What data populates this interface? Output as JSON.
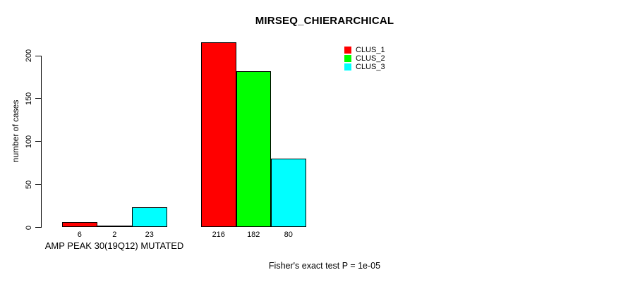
{
  "title": "MIRSEQ_CHIERARCHICAL",
  "subtitle": "Fisher's exact test P = 1e-05",
  "ylabel": "number of cases",
  "legend": {
    "position": "top-right",
    "entries": [
      {
        "label": "CLUS_1",
        "color": "#ff0000"
      },
      {
        "label": "CLUS_2",
        "color": "#00ff00"
      },
      {
        "label": "CLUS_3",
        "color": "#00ffff"
      }
    ]
  },
  "chart_data": {
    "type": "bar",
    "title": "MIRSEQ_CHIERARCHICAL",
    "categories": [
      "AMP PEAK 30(19Q12) MUTATED",
      ""
    ],
    "series": [
      {
        "name": "CLUS_1",
        "color": "#ff0000",
        "values": [
          6,
          216
        ]
      },
      {
        "name": "CLUS_2",
        "color": "#00ff00",
        "values": [
          2,
          182
        ]
      },
      {
        "name": "CLUS_3",
        "color": "#00ffff",
        "values": [
          23,
          80
        ]
      }
    ],
    "value_labels_under_bars": [
      [
        6,
        2,
        23
      ],
      [
        216,
        182,
        80
      ]
    ],
    "xlabel": "",
    "ylabel": "number of cases",
    "ylim": [
      0,
      200
    ],
    "yticks": [
      0,
      50,
      100,
      150,
      200
    ],
    "grid": false,
    "legend_position": "top-right",
    "bar_border_color": "#000000",
    "annotation": "Fisher's exact test P = 1e-05"
  }
}
